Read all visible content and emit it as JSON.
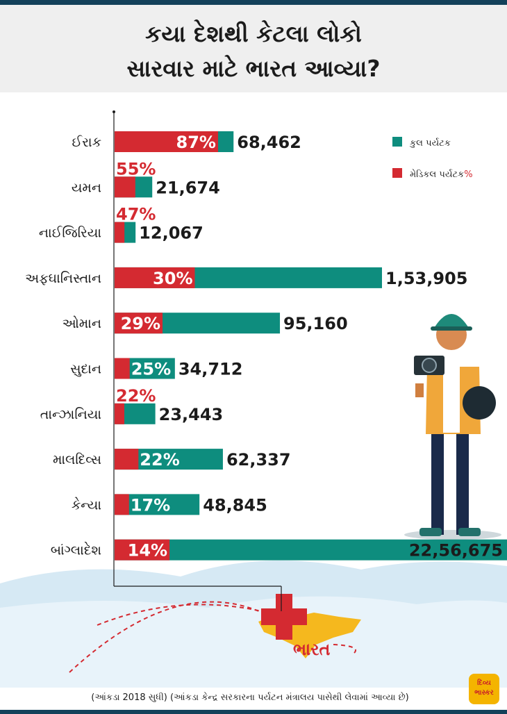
{
  "title": {
    "line1": "કયા દેશથી કેટલા લોકો",
    "line2": "સારવાર માટે ભારત આવ્યા?"
  },
  "legend": {
    "total_label": "કુલ પર્યટક",
    "medical_label": "મેડિકલ પર્યટક",
    "medical_suffix": "%"
  },
  "map_label": "ભારત",
  "footnote": "(આંકડા 2018 સુધી) (આંકડા કેન્દ્ર સરકારના પર્યટન મંત્રાલય પાસેથી લેવામાં આવ્યા છે)",
  "logo_text": "દિવ્ય ભાસ્કર",
  "colors": {
    "total": "#0e8d7e",
    "medical": "#d42a31",
    "header_bg": "#efefef",
    "strip": "#13415a"
  },
  "chart_data": {
    "type": "bar",
    "orientation": "horizontal",
    "categories": [
      "ઈરાક",
      "યમન",
      "નાઈજિરિયા",
      "અફઘાનિસ્તાન",
      "ઓમાન",
      "સુદાન",
      "તાન્ઝાનિયા",
      "માલદિવ્સ",
      "કેન્યા",
      "બાંગ્લાદેશ"
    ],
    "series": [
      {
        "name": "કુલ પર્યટક",
        "values": [
          68462,
          21674,
          12067,
          153905,
          95160,
          34712,
          23443,
          62337,
          48845,
          2256675
        ]
      },
      {
        "name": "મેડિકલ પર્યટક %",
        "values": [
          87,
          55,
          47,
          30,
          29,
          25,
          22,
          22,
          17,
          14
        ]
      }
    ],
    "value_labels": [
      "68,462",
      "21,674",
      "12,067",
      "1,53,905",
      "95,160",
      "34,712",
      "23,443",
      "62,337",
      "48,845",
      "22,56,675"
    ],
    "pct_labels": [
      "87%",
      "55%",
      "47%",
      "30%",
      "29%",
      "25%",
      "22%",
      "22%",
      "17%",
      "14%"
    ],
    "legend_position": "top-right",
    "axis_break_last_bar": true
  }
}
